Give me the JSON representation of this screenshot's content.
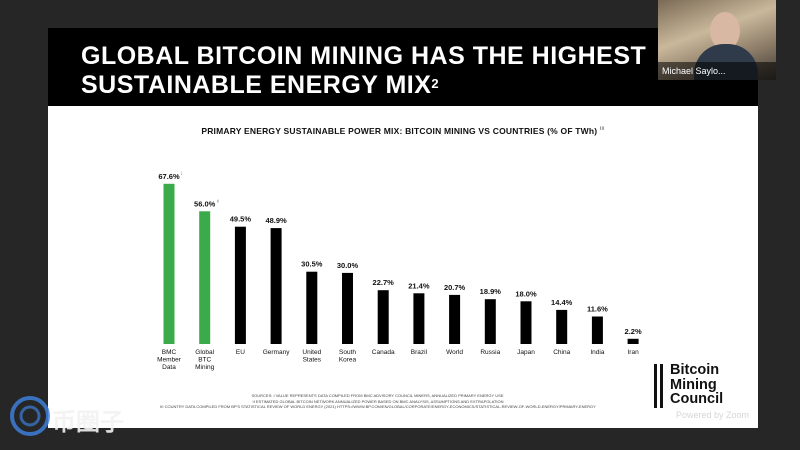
{
  "slide": {
    "title": "GLOBAL BITCOIN MINING HAS THE HIGHEST SUSTAINABLE ENERGY MIX",
    "title_superscript": "2",
    "sources_lines": [
      "SOURCES: I VALUE REPRESENTS DATA COMPILED FROM BMC ADVISORY COUNCIL MINERS, ANNUALIZED PRIMARY ENERGY USE.",
      "II ESTIMATED GLOBAL BITCOIN NETWORK ANNUALIZED POWER BASED ON BMC ANALYSIS, ASSUMPTIONS AND EXTRAPOLATION",
      "III COUNTRY DATA COMPILED FROM BP'S STATISTICAL REVIEW OF WORLD ENERGY (2021) HTTPS://WWW.BP.COM/EN/GLOBAL/CORPORATE/ENERGY-ECONOMICS/STATISTICAL-REVIEW-OF-WORLD-ENERGY/PRIMARY-ENERGY"
    ],
    "logo_lines": [
      "Bitcoin",
      "Mining",
      "Council"
    ]
  },
  "video": {
    "speaker_name": "Michael Saylo..."
  },
  "watermark": {
    "text": "币圈子",
    "powered_by": "Powered by Zoom"
  },
  "colors": {
    "green": "#3aaa4a",
    "black": "#000000"
  },
  "chart_data": {
    "type": "bar",
    "title": "PRIMARY ENERGY SUSTAINABLE POWER MIX: BITCOIN MINING VS COUNTRIES (% OF TWh)",
    "title_superscript": "iii",
    "categories": [
      "BMC Member Data",
      "Global BTC Mining",
      "EU",
      "Germany",
      "United States",
      "South Korea",
      "Canada",
      "Brazil",
      "World",
      "Russia",
      "Japan",
      "China",
      "India",
      "Iran"
    ],
    "values": [
      67.6,
      56.0,
      49.5,
      48.9,
      30.5,
      30.0,
      22.7,
      21.4,
      20.7,
      18.9,
      18.0,
      14.4,
      11.6,
      2.2
    ],
    "value_labels": [
      "67.6%",
      "56.0%",
      "49.5%",
      "48.9%",
      "30.5%",
      "30.0%",
      "22.7%",
      "21.4%",
      "20.7%",
      "18.9%",
      "18.0%",
      "14.4%",
      "11.6%",
      "2.2%"
    ],
    "value_superscripts": [
      "i",
      "ii",
      "",
      "",
      "",
      "",
      "",
      "",
      "",
      "",
      "",
      "",
      "",
      ""
    ],
    "bar_colors": [
      "#3aaa4a",
      "#3aaa4a",
      "#000000",
      "#000000",
      "#000000",
      "#000000",
      "#000000",
      "#000000",
      "#000000",
      "#000000",
      "#000000",
      "#000000",
      "#000000",
      "#000000"
    ],
    "ylim": [
      0,
      70
    ],
    "grid": false,
    "legend": "none"
  }
}
